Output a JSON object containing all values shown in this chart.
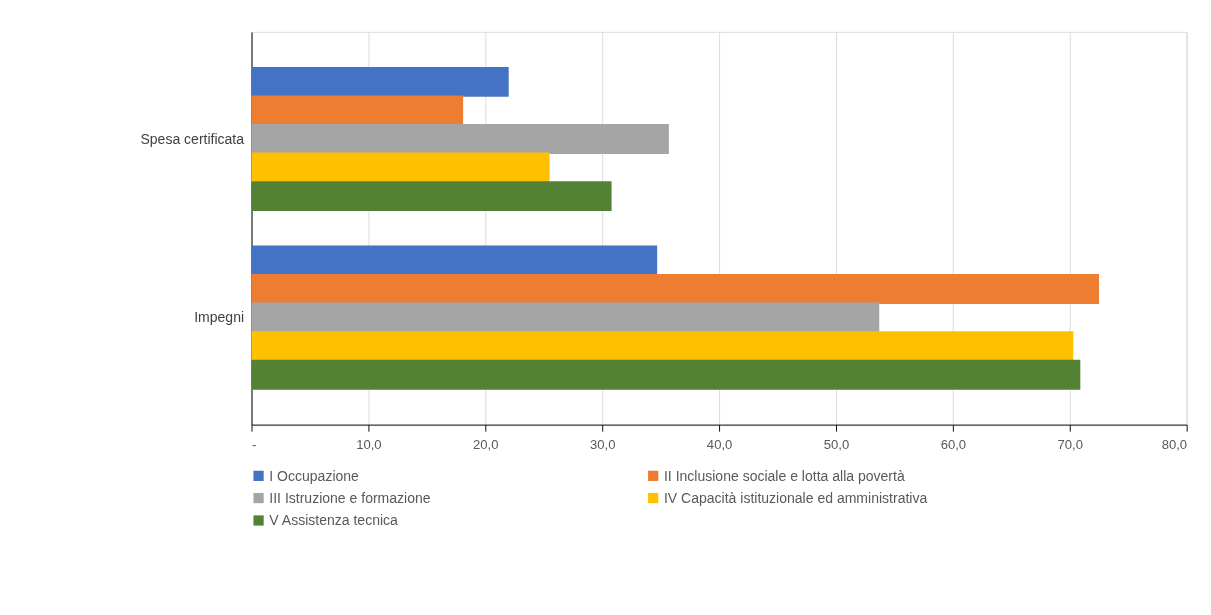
{
  "chart_data": {
    "type": "bar",
    "orientation": "horizontal",
    "categories": [
      "Spesa certificata",
      "Impegni"
    ],
    "series": [
      {
        "name": "I  Occupazione",
        "color": "#4472c4",
        "values": [
          22.0,
          34.7
        ]
      },
      {
        "name": "II  Inclusione sociale e lotta alla povertà",
        "color": "#ed7d31",
        "values": [
          18.1,
          72.5
        ]
      },
      {
        "name": "III Istruzione e formazione",
        "color": "#a5a5a5",
        "values": [
          35.7,
          53.7
        ]
      },
      {
        "name": "IV Capacità istituzionale ed amministrativa",
        "color": "#ffc000",
        "values": [
          25.5,
          70.3
        ]
      },
      {
        "name": "V Assistenza tecnica",
        "color": "#548235",
        "values": [
          30.8,
          70.9
        ]
      }
    ],
    "xlim": [
      0,
      80
    ],
    "xticks": [
      {
        "value": 0,
        "label": "-"
      },
      {
        "value": 10,
        "label": "10,0"
      },
      {
        "value": 20,
        "label": "20,0"
      },
      {
        "value": 30,
        "label": "30,0"
      },
      {
        "value": 40,
        "label": "40,0"
      },
      {
        "value": 50,
        "label": "50,0"
      },
      {
        "value": 60,
        "label": "60,0"
      },
      {
        "value": 70,
        "label": "70,0"
      },
      {
        "value": 80,
        "label": "80,0"
      }
    ],
    "grid": "x",
    "legend": "bottom"
  }
}
